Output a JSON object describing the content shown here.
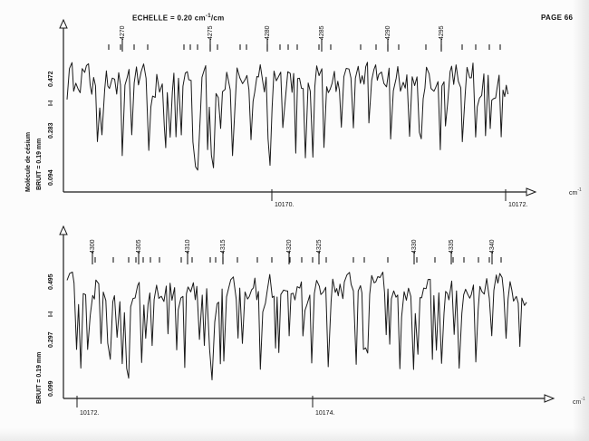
{
  "header": {
    "scale_label": "ECHELLE = 0.20 cm",
    "scale_sup": "-1",
    "scale_unit": "/cm",
    "page_label": "PAGE 66"
  },
  "colors": {
    "trace": "#1a1a1a",
    "paper": "#fcfcfc"
  },
  "chart_data": [
    {
      "type": "line",
      "xunit": "cm-1",
      "xunit_label": "cm",
      "xunit_sup": "-1",
      "ylabel_molecule": "Molécule de césium",
      "ylabel_noise": "BRUIT = 0.19 mm",
      "y_tick_labels": [
        "0.472",
        "0.283",
        "0.094"
      ],
      "y_marker": "I-I",
      "x_tick_labels": [
        "10170.",
        "10172."
      ],
      "line_numbers": [
        "4270",
        "4275",
        "4280",
        "4285",
        "4290",
        "4295"
      ],
      "xlim": [
        10168.0,
        10172.0
      ],
      "ylim": [
        0,
        0.6
      ],
      "trace_seed": 7
    },
    {
      "type": "line",
      "xunit": "cm-1",
      "xunit_label": "cm",
      "xunit_sup": "-1",
      "ylabel_noise": "BRUIT = 0.19 mm",
      "y_tick_labels": [
        "0.495",
        "0.297",
        "0.099"
      ],
      "y_marker": "I-I",
      "x_tick_labels": [
        "10172.",
        "10174."
      ],
      "line_numbers": [
        "4300",
        "4305",
        "4310",
        "4315",
        "4320",
        "4325",
        "4330",
        "4335",
        "4340"
      ],
      "xlim": [
        10172.0,
        10176.0
      ],
      "ylim": [
        0,
        0.6
      ],
      "trace_seed": 19
    }
  ]
}
